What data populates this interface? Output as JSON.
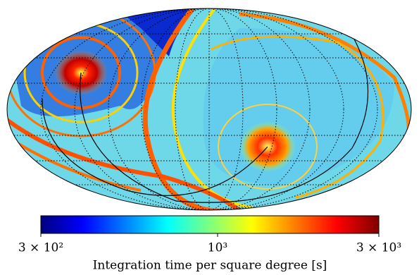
{
  "chart_data": {
    "type": "heatmap",
    "colorbar": {
      "label": "Integration time per square degree [s]",
      "scale": "log",
      "lim": [
        300,
        3000
      ],
      "ticks": [
        {
          "value": 300,
          "label": "3 × 10²"
        },
        {
          "value": 1000,
          "label": "10³"
        },
        {
          "value": 3000,
          "label": "3 × 10³"
        }
      ],
      "colormap": [
        "#00007f",
        "#0000ff",
        "#007fff",
        "#00ffff",
        "#7fff7f",
        "#ffff00",
        "#ff7f00",
        "#ff0000",
        "#7f0000"
      ]
    }
  }
}
